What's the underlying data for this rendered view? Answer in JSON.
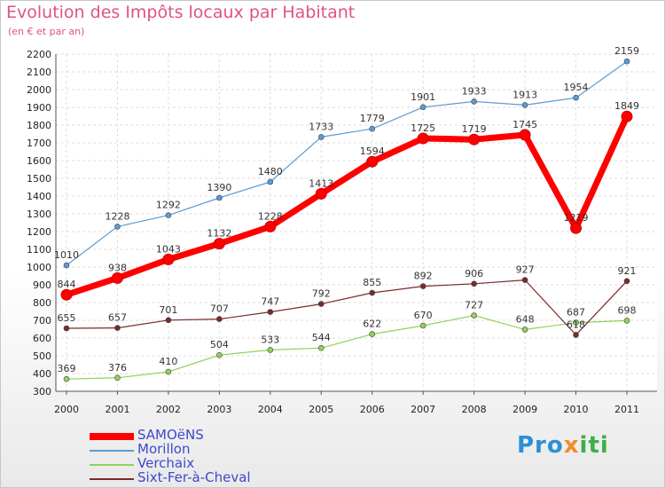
{
  "title": "Evolution des Impôts locaux par Habitant",
  "subtitle": "(en € et par an)",
  "logo": {
    "p1": "Pro",
    "p2": "x",
    "p3": "iti"
  },
  "chart_data": {
    "type": "line",
    "title": "Evolution des Impôts locaux par Habitant",
    "subtitle": "(en € et par an)",
    "xlabel": "",
    "ylabel": "",
    "ylim": [
      300,
      2200
    ],
    "yticks": [
      "300",
      "400",
      "500",
      "600",
      "700",
      "800",
      "900",
      "1000",
      "1100",
      "1200",
      "1300",
      "1400",
      "1500",
      "1600",
      "1700",
      "1800",
      "1900",
      "2000",
      "2100",
      "2200"
    ],
    "categories": [
      "2000",
      "2001",
      "2002",
      "2003",
      "2004",
      "2005",
      "2006",
      "2007",
      "2008",
      "2009",
      "2010",
      "2011"
    ],
    "series": [
      {
        "name": "SAMOëNS",
        "color": "#ff0000",
        "values": [
          844,
          938,
          1043,
          1132,
          1228,
          1413,
          1594,
          1725,
          1719,
          1745,
          1219,
          1849
        ]
      },
      {
        "name": "Morillon",
        "color": "#5b9bd5",
        "values": [
          1010,
          1228,
          1292,
          1390,
          1480,
          1733,
          1779,
          1901,
          1933,
          1913,
          1954,
          2159
        ]
      },
      {
        "name": "Verchaix",
        "color": "#8fd25c",
        "values": [
          369,
          376,
          410,
          504,
          533,
          544,
          622,
          670,
          727,
          648,
          687,
          698
        ]
      },
      {
        "name": "Sixt-Fer-à-Cheval",
        "color": "#7a2a2a",
        "values": [
          655,
          657,
          701,
          707,
          747,
          792,
          855,
          892,
          906,
          927,
          618,
          921
        ]
      }
    ],
    "legend": "bottom-left",
    "grid": true
  }
}
